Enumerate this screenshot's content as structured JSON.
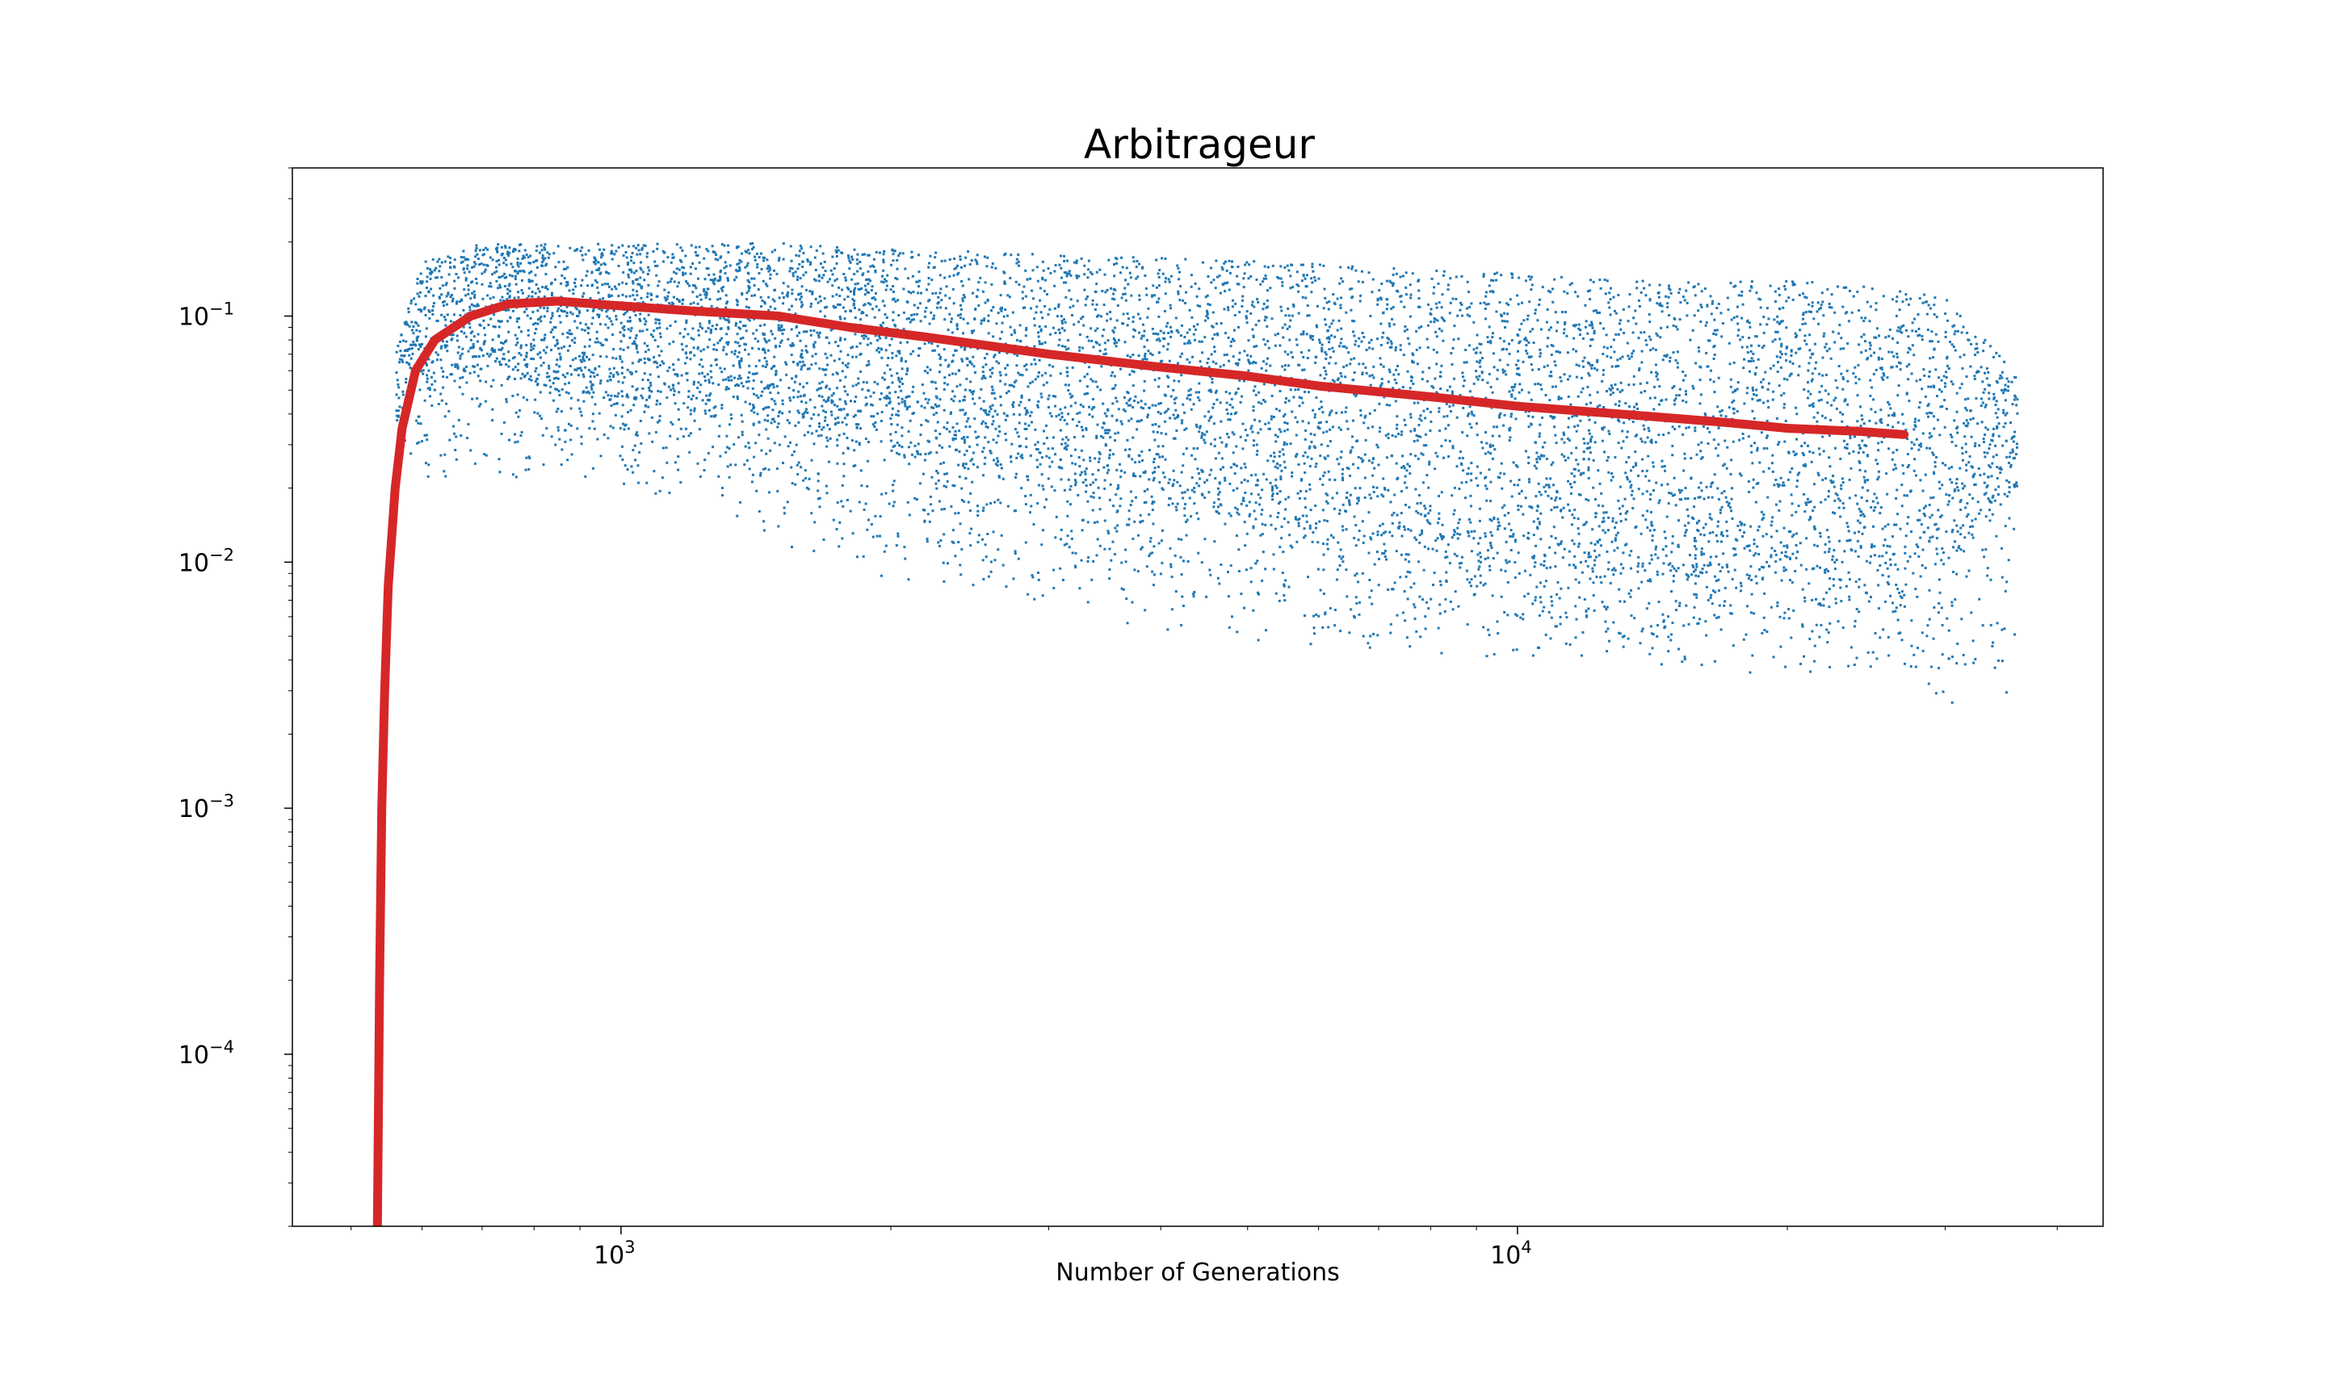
{
  "chart_data": {
    "type": "scatter",
    "title": "Arbitrageur",
    "xlabel": "Number of Generations",
    "ylabel": "",
    "x_scale": "log",
    "y_scale": "log",
    "xlim": [
      430,
      45000
    ],
    "ylim": [
      2e-05,
      0.4
    ],
    "grid": false,
    "legend": null,
    "x_ticks": [
      {
        "value": 1000,
        "base": "10",
        "exp": "3"
      },
      {
        "value": 10000,
        "base": "10",
        "exp": "4"
      }
    ],
    "y_ticks": [
      {
        "value": 0.1,
        "base": "10",
        "exp": "−1"
      },
      {
        "value": 0.01,
        "base": "10",
        "exp": "−2"
      },
      {
        "value": 0.001,
        "base": "10",
        "exp": "−3"
      },
      {
        "value": 0.0001,
        "base": "10",
        "exp": "−4"
      }
    ],
    "colors": {
      "scatter": "#1f77b4",
      "mean_line": "#d62728"
    },
    "series": [
      {
        "kind": "scatter_band",
        "description_x": [
          560,
          600,
          700,
          850,
          1000,
          1500,
          2000,
          3000,
          5000,
          7000,
          10000,
          14000,
          18000,
          22000,
          26000,
          30000,
          36000
        ],
        "upper": [
          0.08,
          0.17,
          0.2,
          0.2,
          0.2,
          0.2,
          0.19,
          0.18,
          0.17,
          0.16,
          0.15,
          0.14,
          0.14,
          0.14,
          0.13,
          0.12,
          0.06
        ],
        "dense_lower": [
          0.04,
          0.05,
          0.06,
          0.05,
          0.045,
          0.035,
          0.028,
          0.02,
          0.015,
          0.012,
          0.01,
          0.009,
          0.009,
          0.009,
          0.009,
          0.01,
          0.02
        ],
        "sparse_lower": [
          0.03,
          0.02,
          0.02,
          0.02,
          0.02,
          0.012,
          0.008,
          0.006,
          0.0045,
          0.0042,
          0.004,
          0.0038,
          0.0035,
          0.0033,
          0.003,
          0.0024,
          0.0022
        ]
      },
      {
        "kind": "mean_line",
        "x": [
          535,
          538,
          541,
          545,
          550,
          560,
          570,
          590,
          620,
          680,
          750,
          850,
          1000,
          1200,
          1500,
          1800,
          2200,
          3000,
          4000,
          5000,
          6000,
          8000,
          10000,
          13000,
          17000,
          20000,
          24000,
          27000
        ],
        "y": [
          2e-05,
          0.0002,
          0.001,
          0.003,
          0.008,
          0.02,
          0.035,
          0.06,
          0.08,
          0.1,
          0.112,
          0.115,
          0.11,
          0.105,
          0.1,
          0.09,
          0.082,
          0.07,
          0.062,
          0.057,
          0.052,
          0.047,
          0.043,
          0.04,
          0.037,
          0.035,
          0.034,
          0.033
        ]
      }
    ]
  }
}
